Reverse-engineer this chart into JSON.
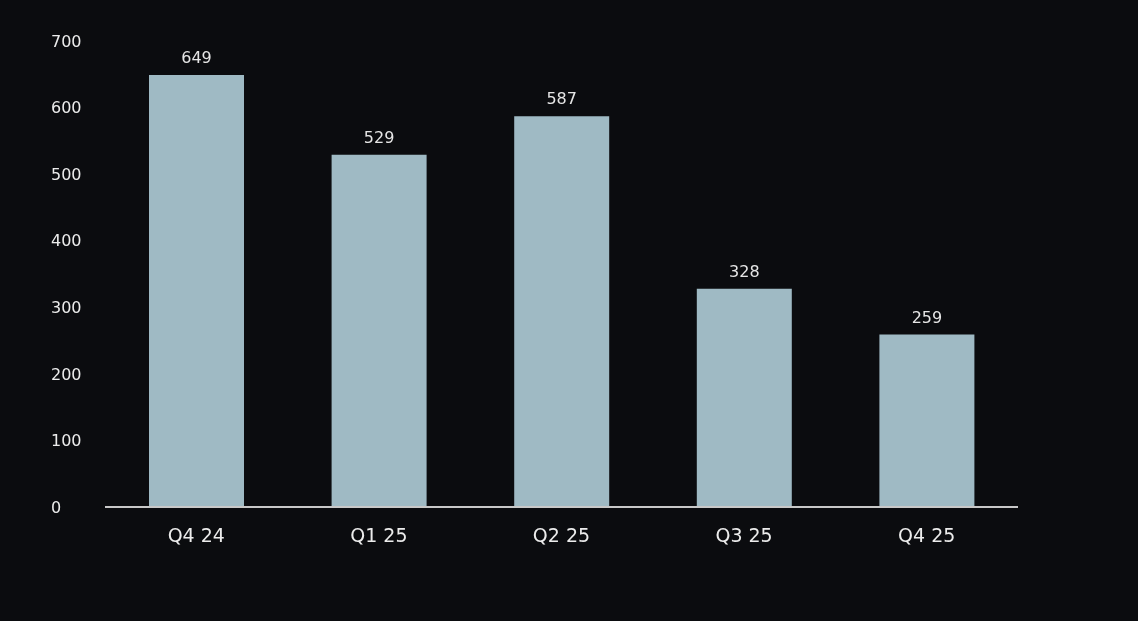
{
  "chart_data": {
    "type": "bar",
    "categories": [
      "Q4 24",
      "Q1 25",
      "Q2 25",
      "Q3 25",
      "Q4 25"
    ],
    "values": [
      649,
      529,
      587,
      328,
      259
    ],
    "color": "#9fbac4",
    "ylim": [
      0,
      700
    ],
    "yticks": [
      0,
      100,
      200,
      300,
      400,
      500,
      600,
      700
    ],
    "grid": false,
    "legend": false,
    "data_labels": true
  }
}
